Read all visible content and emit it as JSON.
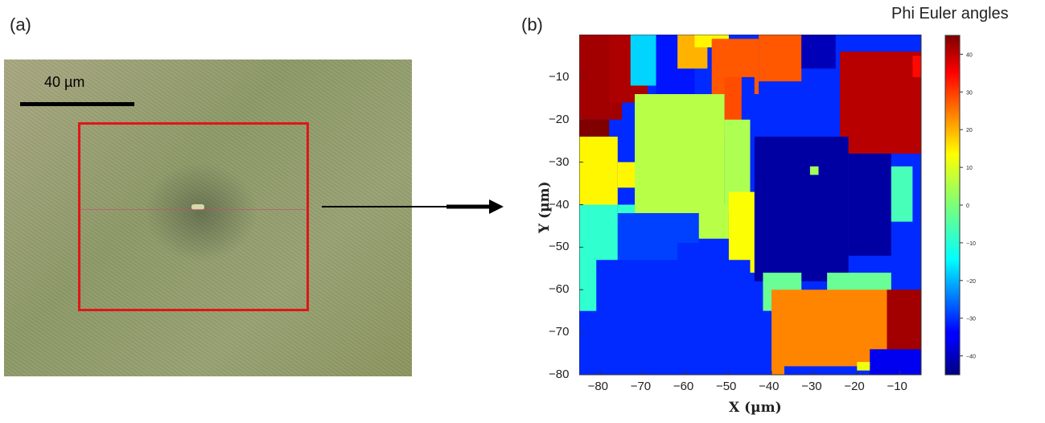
{
  "panels": {
    "a": {
      "label": "(a)",
      "scale_bar_text": "40 µm"
    },
    "b": {
      "label": "(b)"
    }
  },
  "colors": {
    "roi_box": "#e01616",
    "arrow": "#000000"
  },
  "chart_data": {
    "type": "heatmap",
    "title": "",
    "xlabel": "X (µm)",
    "ylabel": "Y (µm)",
    "xlim": [
      -85,
      -5
    ],
    "ylim": [
      -80,
      0
    ],
    "x_ticks": [
      -80,
      -70,
      -60,
      -50,
      -40,
      -30,
      -20,
      -10
    ],
    "y_ticks": [
      -10,
      -20,
      -30,
      -40,
      -50,
      -60,
      -70,
      -80
    ],
    "colorbar": {
      "title": "Phi Euler angles",
      "range": [
        -45,
        45
      ],
      "ticks": [
        40,
        30,
        20,
        10,
        0,
        -10,
        -20,
        -30,
        -40
      ],
      "colormap": "jet"
    },
    "grains": [
      {
        "x": [
          -85,
          -75
        ],
        "y": [
          -20,
          0
        ],
        "value": 42
      },
      {
        "x": [
          -85,
          -78
        ],
        "y": [
          -28,
          -20
        ],
        "value": 45
      },
      {
        "x": [
          -78,
          -69
        ],
        "y": [
          -16,
          0
        ],
        "value": 41
      },
      {
        "x": [
          -73,
          -67
        ],
        "y": [
          -12,
          0
        ],
        "value": -15
      },
      {
        "x": [
          -67,
          -58
        ],
        "y": [
          -14,
          0
        ],
        "value": -32
      },
      {
        "x": [
          -62,
          -55
        ],
        "y": [
          -8,
          0
        ],
        "value": 18
      },
      {
        "x": [
          -58,
          -50
        ],
        "y": [
          -3,
          0
        ],
        "value": 12
      },
      {
        "x": [
          -54,
          -43
        ],
        "y": [
          -14,
          -1
        ],
        "value": 26
      },
      {
        "x": [
          -51,
          -47
        ],
        "y": [
          -24,
          -10
        ],
        "value": 27
      },
      {
        "x": [
          -47,
          -44
        ],
        "y": [
          -20,
          -10
        ],
        "value": -30
      },
      {
        "x": [
          -43,
          -33
        ],
        "y": [
          -11,
          0
        ],
        "value": 26
      },
      {
        "x": [
          -33,
          -25
        ],
        "y": [
          -8,
          0
        ],
        "value": -40
      },
      {
        "x": [
          -24,
          -5
        ],
        "y": [
          -28,
          -4
        ],
        "value": 40
      },
      {
        "x": [
          -7,
          -5
        ],
        "y": [
          -10,
          -5
        ],
        "value": 33
      },
      {
        "x": [
          -85,
          -76
        ],
        "y": [
          -40,
          -24
        ],
        "value": 12
      },
      {
        "x": [
          -76,
          -71
        ],
        "y": [
          -36,
          -30
        ],
        "value": 12
      },
      {
        "x": [
          -85,
          -76
        ],
        "y": [
          -65,
          -40
        ],
        "value": -7
      },
      {
        "x": [
          -76,
          -72
        ],
        "y": [
          -55,
          -40
        ],
        "value": -7
      },
      {
        "x": [
          -72,
          -51
        ],
        "y": [
          -42,
          -14
        ],
        "value": 5
      },
      {
        "x": [
          -51,
          -45
        ],
        "y": [
          -42,
          -20
        ],
        "value": 4
      },
      {
        "x": [
          -76,
          -62
        ],
        "y": [
          -55,
          -42
        ],
        "value": -28
      },
      {
        "x": [
          -62,
          -57
        ],
        "y": [
          -49,
          -42
        ],
        "value": -28
      },
      {
        "x": [
          -57,
          -50
        ],
        "y": [
          -48,
          -40
        ],
        "value": 5
      },
      {
        "x": [
          -50,
          -43
        ],
        "y": [
          -56,
          -37
        ],
        "value": 11
      },
      {
        "x": [
          -44,
          -22
        ],
        "y": [
          -58,
          -24
        ],
        "value": -42
      },
      {
        "x": [
          -22,
          -12
        ],
        "y": [
          -52,
          -28
        ],
        "value": -42
      },
      {
        "x": [
          -12,
          -7
        ],
        "y": [
          -44,
          -31
        ],
        "value": -5
      },
      {
        "x": [
          -31,
          -29
        ],
        "y": [
          -33,
          -31
        ],
        "value": 3
      },
      {
        "x": [
          -42,
          -33
        ],
        "y": [
          -65,
          -56
        ],
        "value": -2
      },
      {
        "x": [
          -27,
          -12
        ],
        "y": [
          -65,
          -56
        ],
        "value": -2
      },
      {
        "x": [
          -85,
          -81
        ],
        "y": [
          -80,
          -68
        ],
        "value": -30
      },
      {
        "x": [
          -81,
          -45
        ],
        "y": [
          -80,
          -53
        ],
        "value": -30
      },
      {
        "x": [
          -45,
          -40
        ],
        "y": [
          -80,
          -65
        ],
        "value": -30
      },
      {
        "x": [
          -40,
          -13
        ],
        "y": [
          -78,
          -60
        ],
        "value": 22
      },
      {
        "x": [
          -13,
          -5
        ],
        "y": [
          -75,
          -60
        ],
        "value": 42
      },
      {
        "x": [
          -17,
          -5
        ],
        "y": [
          -80,
          -74
        ],
        "value": -35
      },
      {
        "x": [
          -13,
          -5
        ],
        "y": [
          -74,
          -68
        ],
        "value": 42
      },
      {
        "x": [
          -40,
          -37
        ],
        "y": [
          -80,
          -75
        ],
        "value": 22
      },
      {
        "x": [
          -20,
          -17
        ],
        "y": [
          -79,
          -77
        ],
        "value": 10
      }
    ]
  }
}
